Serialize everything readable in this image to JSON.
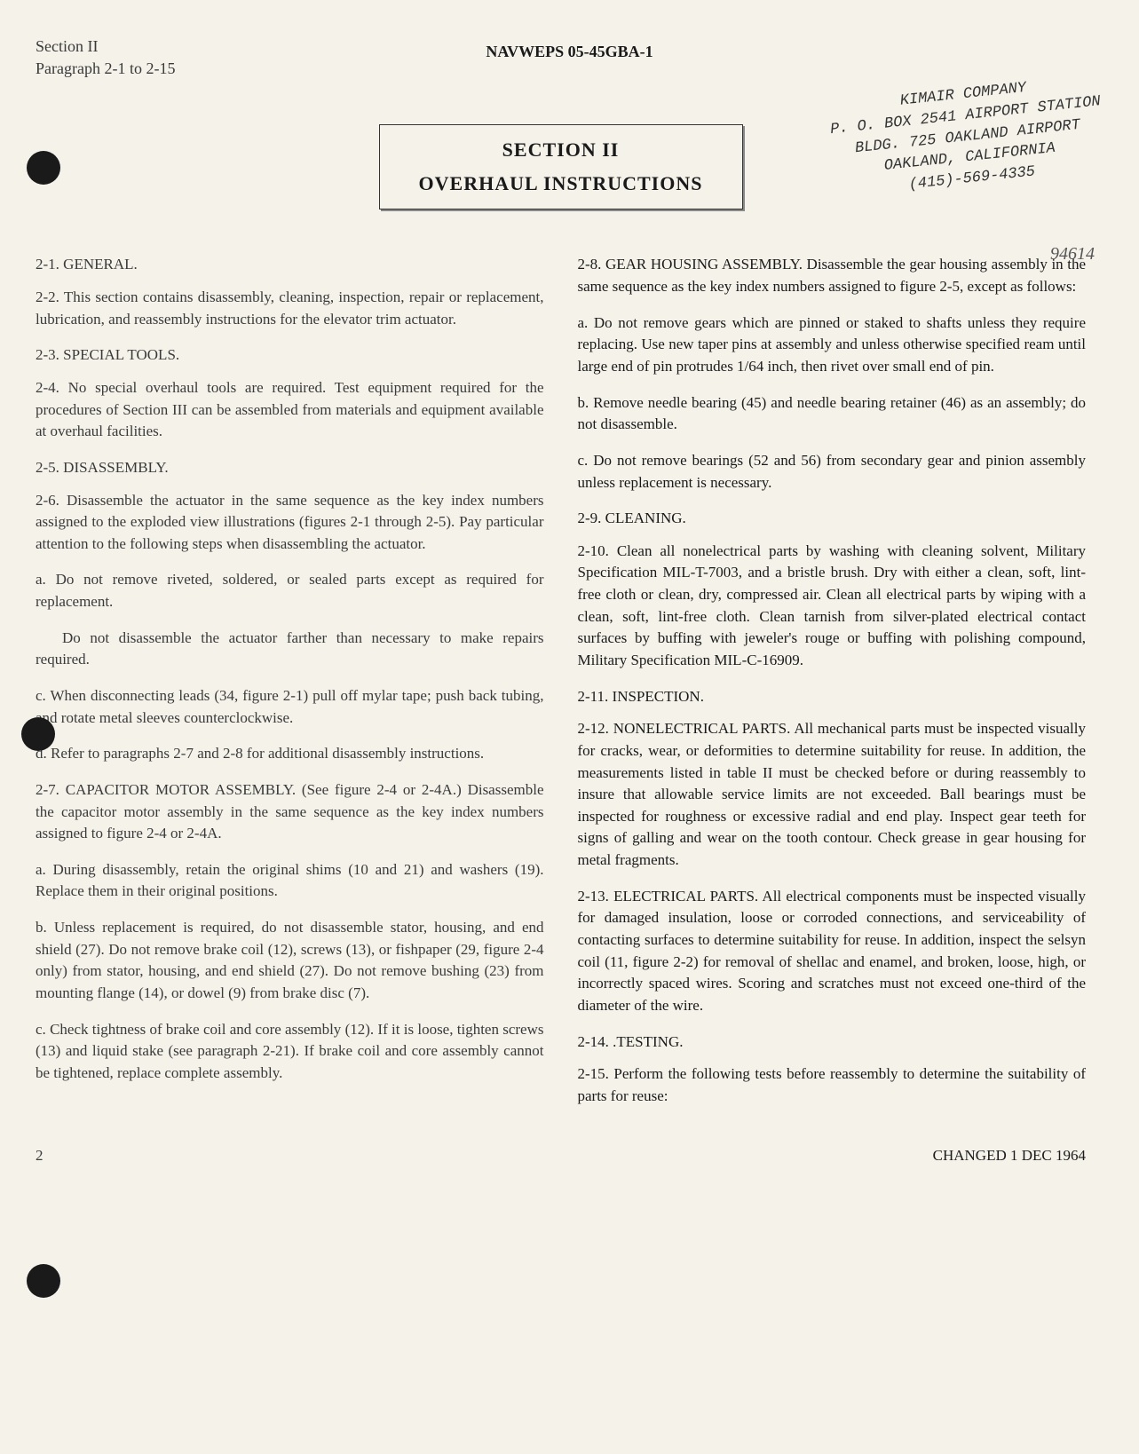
{
  "header": {
    "section": "Section II",
    "paragraph": "Paragraph 2-1 to 2-15",
    "doc_number": "NAVWEPS 05-45GBA-1"
  },
  "section_box": {
    "line1": "SECTION II",
    "line2": "OVERHAUL INSTRUCTIONS"
  },
  "stamp": {
    "line1": "KIMAIR COMPANY",
    "line2": "P. O. BOX 2541 AIRPORT STATION",
    "line3": "BLDG. 725 OAKLAND AIRPORT",
    "line4": "OAKLAND, CALIFORNIA",
    "line5": "(415)-569-4335"
  },
  "handwritten": "94614",
  "left_col": {
    "h1": "2-1. GENERAL.",
    "p1": "2-2. This section contains disassembly, cleaning, inspection, repair or replacement, lubrication, and reassembly instructions for the elevator trim actuator.",
    "h2": "2-3. SPECIAL TOOLS.",
    "p2": "2-4. No special overhaul tools are required. Test equipment required for the procedures of Section III can be assembled from materials and equipment available at overhaul facilities.",
    "h3": "2-5. DISASSEMBLY.",
    "p3": "2-6. Disassemble the actuator in the same sequence as the key index numbers assigned to the exploded view illustrations (figures 2-1 through 2-5). Pay particular attention to the following steps when disassembling the actuator.",
    "p3a": "a. Do not remove riveted, soldered, or sealed parts except as required for replacement.",
    "p3b": "Do not disassemble the actuator farther than necessary to make repairs required.",
    "p3c": "c. When disconnecting leads (34, figure 2-1) pull off mylar tape; push back tubing, and rotate metal sleeves counterclockwise.",
    "p3d": "d. Refer to paragraphs 2-7 and 2-8 for additional disassembly instructions.",
    "p4": "2-7. CAPACITOR MOTOR ASSEMBLY. (See figure 2-4 or 2-4A.) Disassemble the capacitor motor assembly in the same sequence as the key index numbers assigned to figure 2-4 or 2-4A.",
    "p4a": "a. During disassembly, retain the original shims (10 and 21) and washers (19). Replace them in their original positions.",
    "p4b": "b. Unless replacement is required, do not disassemble stator, housing, and end shield (27). Do not remove brake coil (12), screws (13), or fishpaper (29, figure 2-4 only) from stator, housing, and end shield (27). Do not remove bushing (23) from mounting flange (14), or dowel (9) from brake disc (7).",
    "p4c": "c. Check tightness of brake coil and core assembly (12). If it is loose, tighten screws (13) and liquid stake (see paragraph 2-21). If brake coil and core assembly cannot be tightened, replace complete assembly."
  },
  "right_col": {
    "p1": "2-8. GEAR HOUSING ASSEMBLY. Disassemble the gear housing assembly in the same sequence as the key index numbers assigned to figure 2-5, except as follows:",
    "p1a": "a. Do not remove gears which are pinned or staked to shafts unless they require replacing. Use new taper pins at assembly and unless otherwise specified ream until large end of pin protrudes 1/64 inch, then rivet over small end of pin.",
    "p1b": "b. Remove needle bearing (45) and needle bearing retainer (46) as an assembly; do not disassemble.",
    "p1c": "c. Do not remove bearings (52 and 56) from secondary gear and pinion assembly unless replacement is necessary.",
    "h2": "2-9. CLEANING.",
    "p2": "2-10. Clean all nonelectrical parts by washing with cleaning solvent, Military Specification MIL-T-7003, and a bristle brush. Dry with either a clean, soft, lint-free cloth or clean, dry, compressed air. Clean all electrical parts by wiping with a clean, soft, lint-free cloth. Clean tarnish from silver-plated electrical contact surfaces by buffing with jeweler's rouge or buffing with polishing compound, Military Specification MIL-C-16909.",
    "h3": "2-11. INSPECTION.",
    "p3": "2-12. NONELECTRICAL PARTS. All mechanical parts must be inspected visually for cracks, wear, or deformities to determine suitability for reuse. In addition, the measurements listed in table II must be checked before or during reassembly to insure that allowable service limits are not exceeded. Ball bearings must be inspected for roughness or excessive radial and end play. Inspect gear teeth for signs of galling and wear on the tooth contour. Check grease in gear housing for metal fragments.",
    "p4": "2-13. ELECTRICAL PARTS. All electrical components must be inspected visually for damaged insulation, loose or corroded connections, and serviceability of contacting surfaces to determine suitability for reuse. In addition, inspect the selsyn coil (11, figure 2-2) for removal of shellac and enamel, and broken, loose, high, or incorrectly spaced wires. Scoring and scratches must not exceed one-third of the diameter of the wire.",
    "h4": "2-14. .TESTING.",
    "p5": "2-15. Perform the following tests before reassembly to determine the suitability of parts for reuse:"
  },
  "footer": {
    "page": "2",
    "changed": "CHANGED 1 DEC 1964"
  },
  "colors": {
    "background": "#f5f2ea",
    "text_dark": "#1a1a1a",
    "text_faded": "#3a3a3a",
    "dot": "#1a1a1a"
  }
}
